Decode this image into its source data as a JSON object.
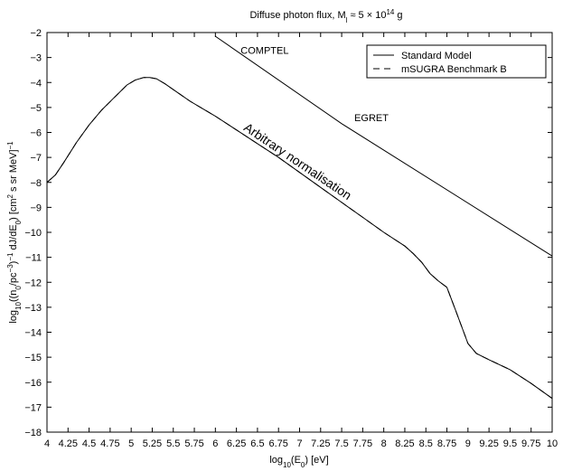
{
  "chart_data": {
    "type": "line",
    "title": "Diffuse photon flux, M_l ≈ 5 × 10^14 g",
    "title_parts": {
      "lead": "Diffuse photon flux, M",
      "sub": "l",
      "mid": " ≈ 5 × 10",
      "sup": "14",
      "tail": " g"
    },
    "xlabel": "log10(E0) [eV]",
    "xlabel_parts": {
      "a": "log",
      "a_sub": "10",
      "b": "(E",
      "b_sub": "0",
      "c": ") [eV]"
    },
    "ylabel": "log10((n0/pc^-3)^-1 dJ/dE0) [cm^2 s sr MeV]^-1",
    "ylabel_parts": {
      "p1": "log",
      "p1_sub": "10",
      "p2": "((n",
      "p2_sub": "0",
      "p3": "/pc",
      "p3_sup": "−3",
      "p4": ")",
      "p4_sup": "−1",
      "p5": " dJ/dE",
      "p5_sub": "0",
      "p6": ") [cm",
      "p6_sup": "2",
      "p7": " s sr MeV]",
      "p7_sup": "−1"
    },
    "xlim": [
      4,
      10
    ],
    "ylim": [
      -18,
      -2
    ],
    "xticks": [
      4,
      4.25,
      4.5,
      4.75,
      5,
      5.25,
      5.5,
      5.75,
      6,
      6.25,
      6.5,
      6.75,
      7,
      7.25,
      7.5,
      7.75,
      8,
      8.25,
      8.5,
      8.75,
      9,
      9.25,
      9.5,
      9.75,
      10
    ],
    "xtick_labels": [
      "4",
      "4.25",
      "4.5",
      "4.75",
      "5",
      "5.25",
      "5.5",
      "5.75",
      "6",
      "6.25",
      "6.5",
      "6.75",
      "7",
      "7.25",
      "7.5",
      "7.75",
      "8",
      "8.25",
      "8.5",
      "8.75",
      "9",
      "9.25",
      "9.5",
      "9.75",
      "10"
    ],
    "yticks": [
      -2,
      -3,
      -4,
      -5,
      -6,
      -7,
      -8,
      -9,
      -10,
      -11,
      -12,
      -13,
      -14,
      -15,
      -16,
      -17,
      -18
    ],
    "ytick_labels": [
      "−2",
      "−3",
      "−4",
      "−5",
      "−6",
      "−7",
      "−8",
      "−9",
      "−10",
      "−11",
      "−12",
      "−13",
      "−14",
      "−15",
      "−16",
      "−17",
      "−18"
    ],
    "grid": false,
    "legend_position": "top-right",
    "legend": [
      {
        "label": "Standard Model",
        "style": "solid"
      },
      {
        "label": "mSUGRA Benchmark B",
        "style": "dashed"
      }
    ],
    "series": [
      {
        "name": "Standard Model",
        "style": "solid",
        "x": [
          4.0,
          4.1,
          4.2,
          4.35,
          4.5,
          4.65,
          4.8,
          4.95,
          5.05,
          5.15,
          5.22,
          5.3,
          5.4,
          5.55,
          5.7,
          5.85,
          6.0,
          6.25,
          6.5,
          6.75,
          7.0,
          7.25,
          7.5,
          7.75,
          8.0,
          8.25,
          8.35,
          8.45,
          8.55,
          8.65,
          8.75,
          8.85,
          8.95,
          9.0,
          9.1,
          9.25,
          9.5,
          9.75,
          10.0
        ],
        "y": [
          -8.0,
          -7.7,
          -7.2,
          -6.4,
          -5.7,
          -5.1,
          -4.6,
          -4.1,
          -3.9,
          -3.8,
          -3.8,
          -3.85,
          -4.05,
          -4.4,
          -4.75,
          -5.05,
          -5.35,
          -5.9,
          -6.45,
          -7.0,
          -7.6,
          -8.2,
          -8.8,
          -9.4,
          -10.0,
          -10.55,
          -10.85,
          -11.2,
          -11.65,
          -11.95,
          -12.2,
          -13.1,
          -14.0,
          -14.45,
          -14.85,
          -15.1,
          -15.5,
          -16.05,
          -16.65
        ]
      },
      {
        "name": "mSUGRA Benchmark B",
        "style": "dashed",
        "x": [
          4.0,
          4.1,
          4.2,
          4.35,
          4.5,
          4.65,
          4.8,
          4.95,
          5.05,
          5.15,
          5.22,
          5.3,
          5.4,
          5.55,
          5.7,
          5.85,
          6.0,
          6.25,
          6.5,
          6.75,
          7.0,
          7.25,
          7.5,
          7.75,
          8.0,
          8.25,
          8.35,
          8.45,
          8.55,
          8.65,
          8.75,
          8.85,
          8.95,
          9.0,
          9.1,
          9.25,
          9.5,
          9.75,
          10.0
        ],
        "y": [
          -8.0,
          -7.7,
          -7.2,
          -6.4,
          -5.7,
          -5.1,
          -4.6,
          -4.1,
          -3.9,
          -3.8,
          -3.8,
          -3.85,
          -4.05,
          -4.4,
          -4.75,
          -5.05,
          -5.35,
          -5.9,
          -6.45,
          -7.0,
          -7.6,
          -8.2,
          -8.8,
          -9.4,
          -10.0,
          -10.55,
          -10.85,
          -11.2,
          -11.65,
          -11.95,
          -12.2,
          -13.1,
          -14.0,
          -14.45,
          -14.85,
          -15.1,
          -15.5,
          -16.05,
          -16.65
        ]
      },
      {
        "name": "COMPTEL / EGRET",
        "style": "solid",
        "x": [
          6.0,
          7.5,
          10.0
        ],
        "y": [
          -2.15,
          -5.65,
          -10.95
        ]
      }
    ],
    "annotations": [
      {
        "text": "COMPTEL",
        "x": 6.3,
        "y": -2.85
      },
      {
        "text": "EGRET",
        "x": 7.65,
        "y": -5.55
      },
      {
        "text": "Arbitrary normalisation",
        "x": 6.95,
        "y": -7.3
      }
    ]
  }
}
